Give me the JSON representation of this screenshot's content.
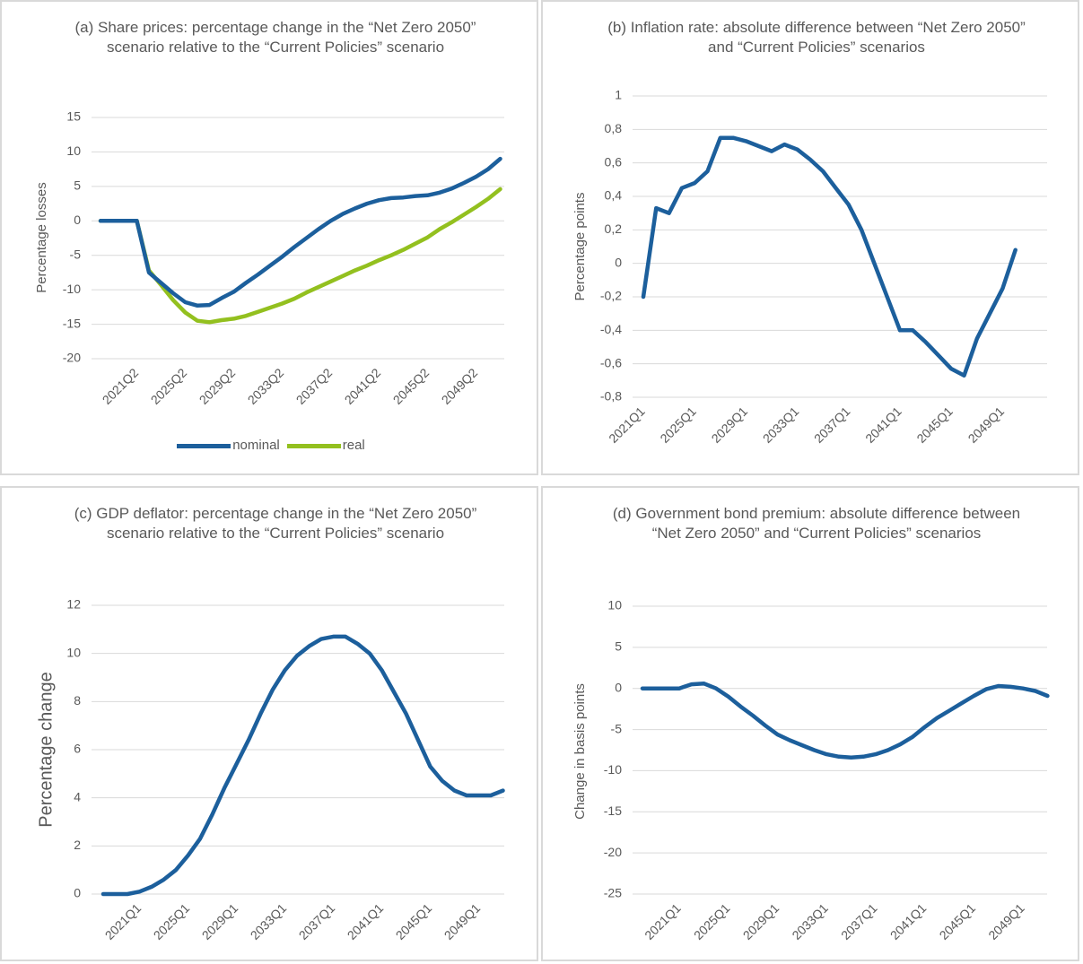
{
  "chart_data": [
    {
      "type": "line",
      "title": "(a) Share prices: percentage change in the “Net Zero 2050” scenario relative to the “Current Policies” scenario",
      "y_label": "Percentage losses",
      "categories": [
        null,
        null,
        null,
        "2021Q2",
        null,
        null,
        null,
        "2025Q2",
        null,
        null,
        null,
        "2029Q2",
        null,
        null,
        null,
        "2033Q2",
        null,
        null,
        null,
        "2037Q2",
        null,
        null,
        null,
        "2041Q2",
        null,
        null,
        null,
        "2045Q2",
        null,
        null,
        null,
        "2049Q2",
        null,
        null
      ],
      "series": [
        {
          "name": "nominal",
          "color": "#1c5f9c",
          "values": [
            0,
            0,
            0,
            0,
            -7.5,
            -9,
            -10.5,
            -11.8,
            -12.3,
            -12.2,
            -11.2,
            -10.3,
            -9,
            -7.8,
            -6.5,
            -5.2,
            -3.8,
            -2.5,
            -1.2,
            0,
            1,
            1.8,
            2.5,
            3,
            3.3,
            3.4,
            3.6,
            3.7,
            4.1,
            4.7,
            5.5,
            6.4,
            7.5,
            9
          ]
        },
        {
          "name": "real",
          "color": "#93c01f",
          "values": [
            0,
            0,
            0,
            0,
            -7.2,
            -9.3,
            -11.5,
            -13.3,
            -14.5,
            -14.7,
            -14.4,
            -14.2,
            -13.8,
            -13.2,
            -12.6,
            -12,
            -11.3,
            -10.4,
            -9.6,
            -8.8,
            -8,
            -7.2,
            -6.5,
            -5.7,
            -5,
            -4.2,
            -3.3,
            -2.4,
            -1.2,
            -0.2,
            0.9,
            2,
            3.2,
            4.6
          ]
        }
      ],
      "ylim": [
        -20,
        15
      ],
      "yticks": [
        -20,
        -15,
        -10,
        -5,
        0,
        5,
        10,
        15
      ],
      "grid": true,
      "legend": "bottom"
    },
    {
      "type": "line",
      "title": "(b) Inflation rate: absolute difference between “Net Zero 2050” and “Current Policies” scenarios",
      "y_label": "Percentage points",
      "categories": [
        "2021Q1",
        null,
        null,
        null,
        "2025Q1",
        null,
        null,
        null,
        "2029Q1",
        null,
        null,
        null,
        "2033Q1",
        null,
        null,
        null,
        "2037Q1",
        null,
        null,
        null,
        "2041Q1",
        null,
        null,
        null,
        "2045Q1",
        null,
        null,
        null,
        "2049Q1",
        null
      ],
      "values": [
        -0.2,
        0.33,
        0.3,
        0.45,
        0.48,
        0.55,
        0.75,
        0.75,
        0.73,
        0.7,
        0.67,
        0.71,
        0.68,
        0.62,
        0.55,
        0.45,
        0.35,
        0.2,
        0,
        -0.2,
        -0.4,
        -0.4,
        -0.47,
        -0.55,
        -0.63,
        -0.67,
        -0.45,
        -0.3,
        -0.15,
        0.08
      ],
      "color": "#1c5f9c",
      "ylim": [
        -0.8,
        1
      ],
      "yticks": [
        {
          "value": -0.8,
          "label": "-0,8"
        },
        {
          "value": -0.6,
          "label": "-0,6"
        },
        {
          "value": -0.4,
          "label": "-0,4"
        },
        {
          "value": -0.2,
          "label": "-0,2"
        },
        0,
        {
          "value": 0.2,
          "label": "0,2"
        },
        {
          "value": 0.4,
          "label": "0,4"
        },
        {
          "value": 0.6,
          "label": "0,6"
        },
        {
          "value": 0.8,
          "label": "0,8"
        },
        1
      ],
      "grid": true
    },
    {
      "type": "line",
      "title": "(c) GDP deflator: percentage change in the “Net Zero 2050” scenario relative to the “Current Policies” scenario",
      "y_label": "Percentage  change",
      "categories": [
        null,
        null,
        null,
        "2021Q1",
        null,
        null,
        null,
        "2025Q1",
        null,
        null,
        null,
        "2029Q1",
        null,
        null,
        null,
        "2033Q1",
        null,
        null,
        null,
        "2037Q1",
        null,
        null,
        null,
        "2041Q1",
        null,
        null,
        null,
        "2045Q1",
        null,
        null,
        null,
        "2049Q1",
        null,
        null
      ],
      "values": [
        0,
        0,
        0,
        0.1,
        0.3,
        0.6,
        1.0,
        1.6,
        2.3,
        3.3,
        4.4,
        5.4,
        6.4,
        7.5,
        8.5,
        9.3,
        9.9,
        10.3,
        10.6,
        10.7,
        10.7,
        10.4,
        10,
        9.3,
        8.4,
        7.5,
        6.4,
        5.3,
        4.7,
        4.3,
        4.1,
        4.1,
        4.1,
        4.3
      ],
      "color": "#1c5f9c",
      "ylim": [
        0,
        12
      ],
      "yticks": [
        0,
        2,
        4,
        6,
        8,
        10,
        12
      ],
      "grid": true
    },
    {
      "type": "line",
      "title": "(d) Government bond premium: absolute difference between “Net Zero 2050” and “Current Policies” scenarios",
      "y_label": "Change in basis points",
      "categories": [
        null,
        null,
        null,
        "2021Q1",
        null,
        null,
        null,
        "2025Q1",
        null,
        null,
        null,
        "2029Q1",
        null,
        null,
        null,
        "2033Q1",
        null,
        null,
        null,
        "2037Q1",
        null,
        null,
        null,
        "2041Q1",
        null,
        null,
        null,
        "2045Q1",
        null,
        null,
        null,
        "2049Q1",
        null,
        null
      ],
      "values": [
        0,
        0,
        0,
        0,
        0.5,
        0.6,
        0,
        -1,
        -2.2,
        -3.3,
        -4.5,
        -5.6,
        -6.3,
        -6.9,
        -7.5,
        -8,
        -8.3,
        -8.4,
        -8.3,
        -8,
        -7.5,
        -6.8,
        -5.9,
        -4.7,
        -3.6,
        -2.7,
        -1.8,
        -0.9,
        -0.1,
        0.3,
        0.2,
        0,
        -0.3,
        -0.9
      ],
      "color": "#1c5f9c",
      "ylim": [
        -25,
        10
      ],
      "yticks": [
        -25,
        -20,
        -15,
        -10,
        -5,
        0,
        5,
        10
      ],
      "grid": true
    }
  ]
}
